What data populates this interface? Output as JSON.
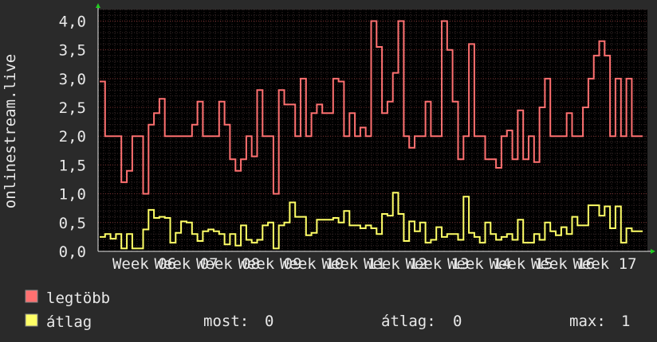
{
  "chart_data": {
    "type": "line",
    "ylabel": "onlinestream.live",
    "ylim": [
      0,
      4.2
    ],
    "yticks": [
      "0,0",
      "0,5",
      "1,0",
      "1,5",
      "2,0",
      "2,5",
      "3,0",
      "3,5",
      "4,0"
    ],
    "ytick_values": [
      0,
      0.5,
      1.0,
      1.5,
      2.0,
      2.5,
      3.0,
      3.5,
      4.0
    ],
    "xticks": [
      "Week 06",
      "Week 07",
      "Week 08",
      "Week 09",
      "Week 10",
      "Week 11",
      "Week 12",
      "Week 13",
      "Week 14",
      "Week 15",
      "Week 16",
      "Week 17"
    ],
    "xlim": [
      0,
      130
    ],
    "grid": true,
    "series": [
      {
        "name": "legtöbb",
        "color": "#ff7070",
        "values": [
          2.95,
          2,
          2,
          2,
          1.2,
          1.4,
          2,
          2,
          1,
          2.2,
          2.4,
          2.65,
          2,
          2,
          2,
          2,
          2,
          2.2,
          2.6,
          2,
          2,
          2,
          2.6,
          2.2,
          1.6,
          1.4,
          1.6,
          2,
          1.65,
          2.8,
          2,
          2,
          1,
          2.8,
          2.55,
          2.55,
          2,
          3,
          2,
          2.4,
          2.55,
          2.4,
          2.4,
          3,
          2.95,
          2,
          2.4,
          2,
          2.15,
          2,
          4,
          3.55,
          2.4,
          2.6,
          3.1,
          4,
          2,
          1.8,
          2,
          2,
          2.6,
          2,
          2,
          4,
          3.5,
          2.6,
          1.6,
          2,
          3.6,
          2,
          2,
          1.6,
          1.6,
          1.45,
          2,
          2.1,
          1.6,
          2.45,
          1.6,
          2,
          1.55,
          2.5,
          3,
          2,
          2,
          2,
          2.4,
          2,
          2,
          2.5,
          3,
          3.4,
          3.65,
          3.4,
          2,
          3,
          2,
          3,
          2,
          2
        ]
      },
      {
        "name": "átlag",
        "color": "#ffff66",
        "values": [
          0.25,
          0.3,
          0.22,
          0.3,
          0.05,
          0.3,
          0.05,
          0.05,
          0.38,
          0.72,
          0.58,
          0.6,
          0.58,
          0.15,
          0.32,
          0.52,
          0.5,
          0.3,
          0.18,
          0.35,
          0.38,
          0.35,
          0.3,
          0.12,
          0.3,
          0.1,
          0.45,
          0.2,
          0.15,
          0.2,
          0.45,
          0.5,
          0.05,
          0.45,
          0.5,
          0.85,
          0.6,
          0.6,
          0.28,
          0.32,
          0.55,
          0.55,
          0.55,
          0.58,
          0.5,
          0.7,
          0.45,
          0.45,
          0.4,
          0.45,
          0.4,
          0.3,
          0.65,
          0.62,
          1.02,
          0.65,
          0.18,
          0.52,
          0.35,
          0.5,
          0.15,
          0.2,
          0.42,
          0.25,
          0.3,
          0.3,
          0.2,
          0.95,
          0.32,
          0.25,
          0.15,
          0.5,
          0.3,
          0.2,
          0.25,
          0.3,
          0.2,
          0.55,
          0.15,
          0.15,
          0.3,
          0.2,
          0.5,
          0.35,
          0.28,
          0.42,
          0.3,
          0.6,
          0.45,
          0.45,
          0.8,
          0.8,
          0.62,
          0.78,
          0.4,
          0.78,
          0.15,
          0.4,
          0.35,
          0.35
        ]
      }
    ],
    "legend": [
      {
        "label": "legtöbb",
        "color": "#ff7070"
      },
      {
        "label": "átlag",
        "color": "#ffff66"
      }
    ]
  },
  "stats": {
    "most_label": "most:",
    "most_value": "0",
    "atlag_label": "átlag:",
    "atlag_value": "0",
    "max_label": "max:",
    "max_value": "1"
  }
}
